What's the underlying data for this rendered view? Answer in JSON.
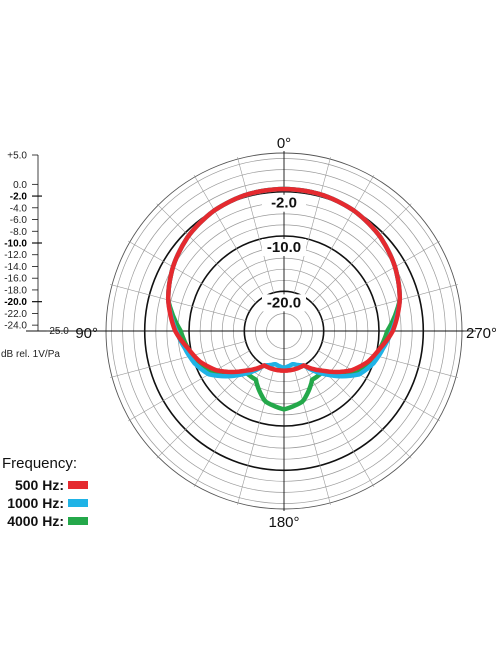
{
  "chart_data": {
    "type": "polar",
    "unit_label": "dB rel. 1V/Pa",
    "scale": {
      "min": -25.0,
      "max": 5.0,
      "ticks": [
        "+5.0",
        "0.0",
        "-2.0",
        "-4.0",
        "-6.0",
        "-8.0",
        "-10.0",
        "-12.0",
        "-14.0",
        "-16.0",
        "-18.0",
        "-20.0",
        "-22.0",
        "-24.0",
        "-25.0"
      ],
      "tick_values": [
        5,
        0,
        -2,
        -4,
        -6,
        -8,
        -10,
        -12,
        -14,
        -16,
        -18,
        -20,
        -22,
        -24,
        -25
      ],
      "major_ticks": [
        "-2.0",
        "-10.0",
        "-20.0"
      ]
    },
    "ring_labels": [
      "-2.0",
      "-10.0",
      "-20.0"
    ],
    "angle_labels": {
      "top": "0°",
      "left": "90°",
      "right": "270°",
      "bottom": "180°"
    },
    "legend": {
      "title": "Frequency:",
      "items": [
        {
          "label": "500 Hz:",
          "color": "#e52a2f"
        },
        {
          "label": "1000 Hz:",
          "color": "#1fb3e6"
        },
        {
          "label": "4000 Hz:",
          "color": "#24a84a"
        }
      ]
    },
    "series": [
      {
        "name": "500 Hz",
        "color": "#e52a2f",
        "angles": [
          0,
          15,
          30,
          45,
          60,
          75,
          90,
          100,
          110,
          120,
          135,
          150,
          165,
          180
        ],
        "values": [
          -1.5,
          -1.6,
          -2.0,
          -2.8,
          -4.0,
          -5.5,
          -7.5,
          -9.5,
          -11.0,
          -13.0,
          -17.0,
          -20.0,
          -20.0,
          -20.0
        ]
      },
      {
        "name": "1000 Hz",
        "color": "#1fb3e6",
        "angles": [
          0,
          15,
          30,
          45,
          60,
          75,
          90,
          100,
          110,
          120,
          135,
          150,
          165,
          180
        ],
        "values": [
          -1.5,
          -1.6,
          -2.0,
          -2.8,
          -4.0,
          -5.5,
          -7.7,
          -9.0,
          -10.0,
          -11.5,
          -16.0,
          -20.0,
          -21.0,
          -20.5
        ]
      },
      {
        "name": "4000 Hz",
        "color": "#24a84a",
        "angles": [
          0,
          15,
          30,
          45,
          60,
          75,
          90,
          100,
          110,
          120,
          135,
          150,
          165,
          180
        ],
        "values": [
          -1.5,
          -1.6,
          -2.0,
          -2.8,
          -4.0,
          -5.5,
          -8.5,
          -9.5,
          -10.5,
          -12.0,
          -17.0,
          -17.0,
          -14.0,
          -13.0
        ]
      }
    ]
  }
}
